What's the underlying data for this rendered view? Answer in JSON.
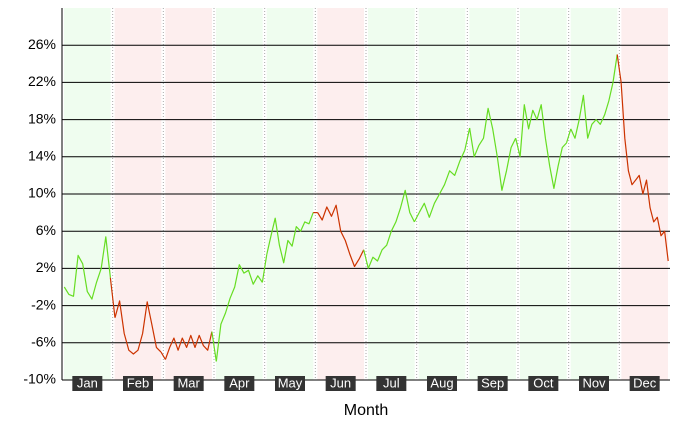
{
  "chart_data": {
    "type": "line",
    "x_label": "Month",
    "categories": [
      "Jan",
      "Feb",
      "Mar",
      "Apr",
      "May",
      "Jun",
      "Jul",
      "Aug",
      "Sep",
      "Oct",
      "Nov",
      "Dec"
    ],
    "values": [
      [
        0,
        -0.8,
        -1,
        3.4,
        2.5,
        -0.5,
        -1.3,
        0.5,
        2,
        5.4,
        1
      ],
      [
        -3.3,
        -1.5,
        -5,
        -6.8,
        -7.2,
        -6.8,
        -5,
        -1.6,
        -4,
        -6.5,
        -7
      ],
      [
        -7.8,
        -6.5,
        -5.5,
        -6.8,
        -5.5,
        -6.5,
        -5.2,
        -6.5,
        -5.2,
        -6.3,
        -6.8,
        -4.8
      ],
      [
        -8,
        -4,
        -2.8,
        -1.2,
        0,
        2.4,
        1.5,
        1.8,
        0.3,
        1.2,
        0.5
      ],
      [
        3.5,
        5.5,
        7.4,
        4.5,
        2.6,
        5,
        4.4,
        6.5,
        6,
        7,
        6.8,
        8
      ],
      [
        8,
        7.2,
        8.6,
        7.6,
        8.8,
        6,
        5,
        3.5,
        2.2,
        3,
        4
      ],
      [
        2,
        3.2,
        2.8,
        4,
        4.5,
        6,
        7,
        8.5,
        10.4,
        8,
        7
      ],
      [
        8,
        9,
        7.5,
        9,
        10,
        11,
        12.5,
        12,
        13.5,
        14.7
      ],
      [
        17.1,
        14,
        15.2,
        16,
        19.2,
        17,
        14,
        10.4,
        12.5,
        15,
        16
      ],
      [
        14,
        19.6,
        17,
        19,
        18,
        19.6,
        16,
        13,
        10.6,
        13,
        15,
        15.5
      ],
      [
        17,
        16,
        18,
        20.6,
        16,
        17.5,
        18,
        17.5,
        18.5,
        20,
        22,
        25
      ],
      [
        22,
        16,
        12.5,
        11,
        11.5,
        12,
        10,
        11.5,
        8.5,
        7,
        7.5,
        5.5,
        6,
        2.8
      ]
    ],
    "colors": [
      "#66dd22",
      "#cc3300",
      "#cc3300",
      "#66dd22",
      "#66dd22",
      "#cc3300",
      "#66dd22",
      "#66dd22",
      "#66dd22",
      "#66dd22",
      "#66dd22",
      "#cc3300"
    ],
    "band_colors": [
      "#effdef",
      "#fdeeee",
      "#fdeeee",
      "#effdef",
      "#effdef",
      "#fdeeee",
      "#effdef",
      "#effdef",
      "#effdef",
      "#effdef",
      "#effdef",
      "#fdeeee"
    ],
    "ylim": [
      -10,
      30
    ],
    "yticks": [
      {
        "value": -10,
        "label": "-10%"
      },
      {
        "value": -6,
        "label": "-6%"
      },
      {
        "value": -2,
        "label": "-2%"
      },
      {
        "value": 2,
        "label": "2%"
      },
      {
        "value": 6,
        "label": "6%"
      },
      {
        "value": 10,
        "label": "10%"
      },
      {
        "value": 14,
        "label": "14%"
      },
      {
        "value": 18,
        "label": "18%"
      },
      {
        "value": 22,
        "label": "22%"
      },
      {
        "value": 26,
        "label": "26%"
      }
    ],
    "grid": true
  }
}
